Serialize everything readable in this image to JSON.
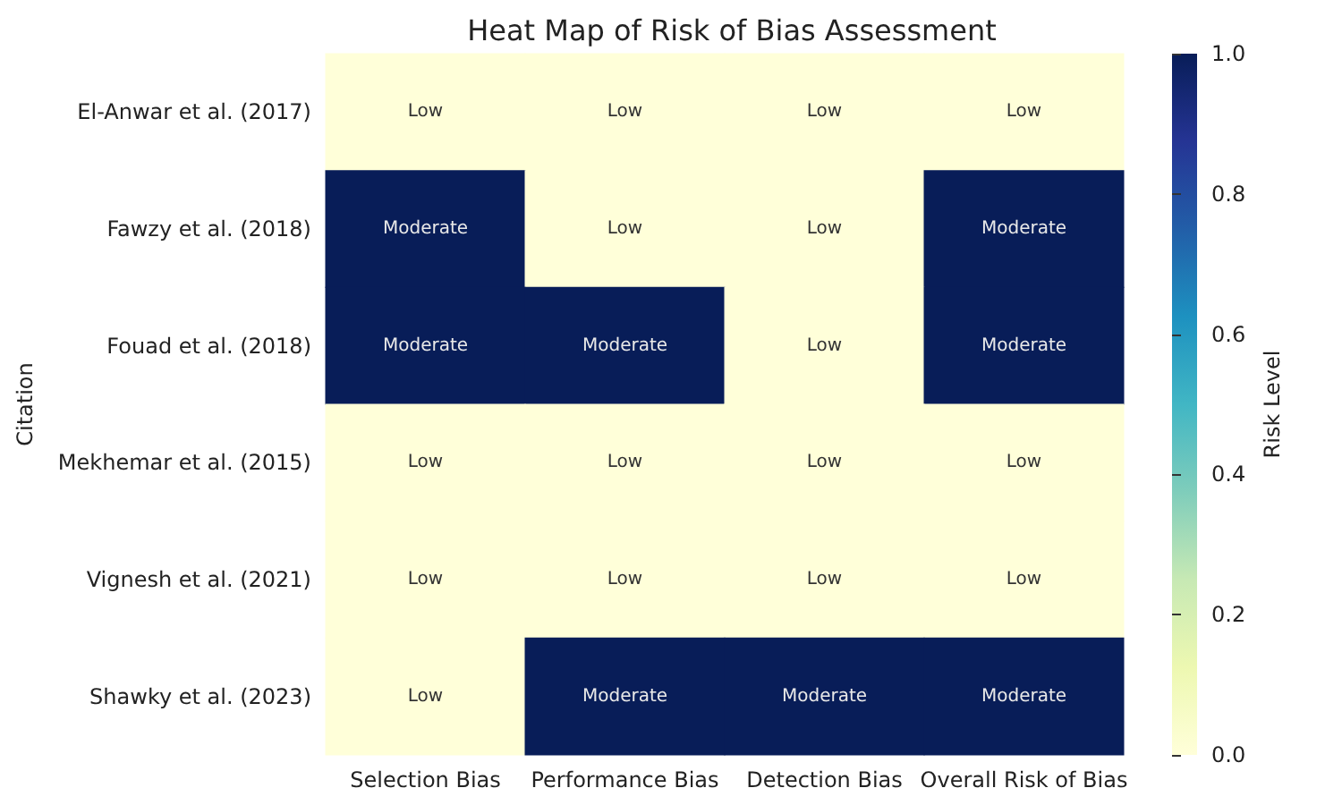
{
  "chart_data": {
    "type": "heatmap",
    "title": "Heat Map of Risk of Bias Assessment",
    "ylabel": "Citation",
    "clabel": "Risk Level",
    "categories": [
      "Selection Bias",
      "Performance Bias",
      "Detection Bias",
      "Overall Risk of Bias"
    ],
    "y_categories": [
      "El-Anwar et al. (2017)",
      "Fawzy et al. (2018)",
      "Fouad et al. (2018)",
      "Mekhemar et al. (2015)",
      "Vignesh et al. (2021)",
      "Shawky et al. (2023)"
    ],
    "cells": [
      [
        0,
        0,
        0,
        0
      ],
      [
        1,
        0,
        0,
        1
      ],
      [
        1,
        1,
        0,
        1
      ],
      [
        0,
        0,
        0,
        0
      ],
      [
        0,
        0,
        0,
        0
      ],
      [
        0,
        1,
        1,
        1
      ]
    ],
    "cell_labels": [
      [
        "Low",
        "Low",
        "Low",
        "Low"
      ],
      [
        "Moderate",
        "Low",
        "Low",
        "Moderate"
      ],
      [
        "Moderate",
        "Moderate",
        "Low",
        "Moderate"
      ],
      [
        "Low",
        "Low",
        "Low",
        "Low"
      ],
      [
        "Low",
        "Low",
        "Low",
        "Low"
      ],
      [
        "Low",
        "Moderate",
        "Moderate",
        "Moderate"
      ]
    ],
    "clim": [
      0,
      1
    ],
    "cticks": [
      {
        "value": 0,
        "label": "0.0"
      },
      {
        "value": 0.2,
        "label": "0.2"
      },
      {
        "value": 0.4,
        "label": "0.4"
      },
      {
        "value": 0.6,
        "label": "0.6"
      },
      {
        "value": 0.8,
        "label": "0.8"
      },
      {
        "value": 1,
        "label": "1.0"
      }
    ]
  }
}
